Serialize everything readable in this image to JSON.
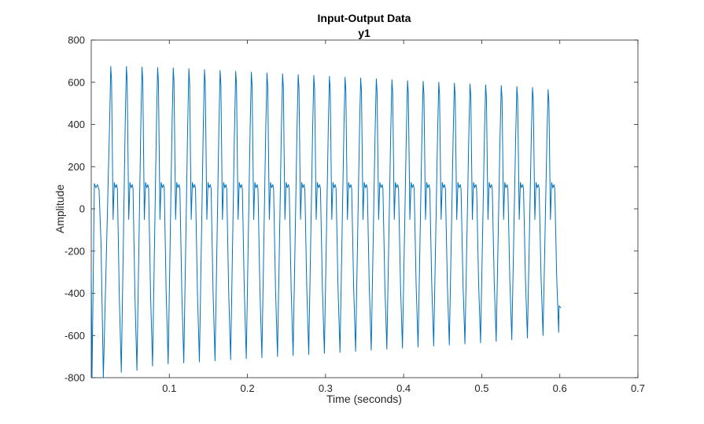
{
  "chart_data": {
    "type": "line",
    "title": "Input-Output Data",
    "subtitle": "y1",
    "xlabel": "Time (seconds)",
    "ylabel": "Amplitude",
    "xlim": [
      0,
      0.7
    ],
    "ylim": [
      -800,
      800
    ],
    "xticks": [
      0.1,
      0.2,
      0.3,
      0.4,
      0.5,
      0.6,
      0.7
    ],
    "xtick_labels": [
      "0.1",
      "0.2",
      "0.3",
      "0.4",
      "0.5",
      "0.6",
      "0.7"
    ],
    "yticks": [
      -800,
      -600,
      -400,
      -200,
      0,
      200,
      400,
      600,
      800
    ],
    "ytick_labels": [
      "-800",
      "-600",
      "-400",
      "-200",
      "0",
      "200",
      "400",
      "600",
      "800"
    ],
    "grid": false,
    "line_color": "#0072BD",
    "series": [
      {
        "period": 0.02,
        "t_start": 0.0,
        "t_end": 0.6,
        "cycle_peaks": [
          {
            "t": 0.002,
            "max": 120,
            "min": -800
          },
          {
            "t": 0.022,
            "max": 675,
            "min": -775
          },
          {
            "t": 0.042,
            "max": 675,
            "min": -765
          },
          {
            "t": 0.062,
            "max": 672,
            "min": -745
          },
          {
            "t": 0.082,
            "max": 670,
            "min": -735
          },
          {
            "t": 0.102,
            "max": 668,
            "min": -730
          },
          {
            "t": 0.122,
            "max": 664,
            "min": -725
          },
          {
            "t": 0.142,
            "max": 660,
            "min": -720
          },
          {
            "t": 0.162,
            "max": 656,
            "min": -715
          },
          {
            "t": 0.182,
            "max": 652,
            "min": -710
          },
          {
            "t": 0.202,
            "max": 648,
            "min": -705
          },
          {
            "t": 0.222,
            "max": 644,
            "min": -700
          },
          {
            "t": 0.242,
            "max": 640,
            "min": -695
          },
          {
            "t": 0.262,
            "max": 636,
            "min": -690
          },
          {
            "t": 0.282,
            "max": 632,
            "min": -685
          },
          {
            "t": 0.302,
            "max": 628,
            "min": -680
          },
          {
            "t": 0.322,
            "max": 624,
            "min": -675
          },
          {
            "t": 0.342,
            "max": 620,
            "min": -670
          },
          {
            "t": 0.362,
            "max": 616,
            "min": -665
          },
          {
            "t": 0.382,
            "max": 612,
            "min": -660
          },
          {
            "t": 0.402,
            "max": 608,
            "min": -655
          },
          {
            "t": 0.422,
            "max": 604,
            "min": -650
          },
          {
            "t": 0.442,
            "max": 600,
            "min": -645
          },
          {
            "t": 0.462,
            "max": 596,
            "min": -640
          },
          {
            "t": 0.482,
            "max": 592,
            "min": -635
          },
          {
            "t": 0.502,
            "max": 588,
            "min": -628
          },
          {
            "t": 0.522,
            "max": 584,
            "min": -620
          },
          {
            "t": 0.542,
            "max": 580,
            "min": -612
          },
          {
            "t": 0.562,
            "max": 575,
            "min": -600
          },
          {
            "t": 0.582,
            "max": 565,
            "min": -585
          }
        ],
        "plateau_level": 110
      }
    ]
  }
}
